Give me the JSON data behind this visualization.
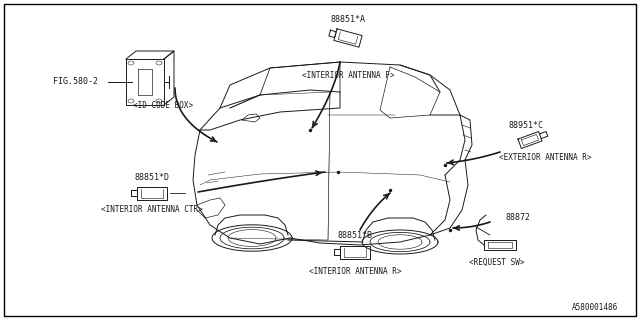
{
  "background_color": "#ffffff",
  "border_color": "#000000",
  "line_color": "#1a1a1a",
  "text_color": "#1a1a1a",
  "part_numbers": {
    "antenna_f": "88851*A",
    "antenna_c": "88951*C",
    "antenna_d": "88851*D",
    "antenna_b": "88851*B",
    "request_sw": "88872",
    "fig_ref": "FIG.580-2"
  },
  "labels": {
    "interior_antenna_f": "<INTERIOR ANTENNA F>",
    "exterior_antenna_r": "<EXTERIOR ANTENNA R>",
    "interior_antenna_ctr": "<INTERIOR ANTENNA CTR>",
    "interior_antenna_r": "<INTERIOR ANTENNA R>",
    "request_sw": "<REQUEST SW>",
    "id_code_box": "<ID CODE BOX>"
  },
  "diagram_id": "A580001486",
  "font_size": 5.5,
  "part_font_size": 6.0
}
